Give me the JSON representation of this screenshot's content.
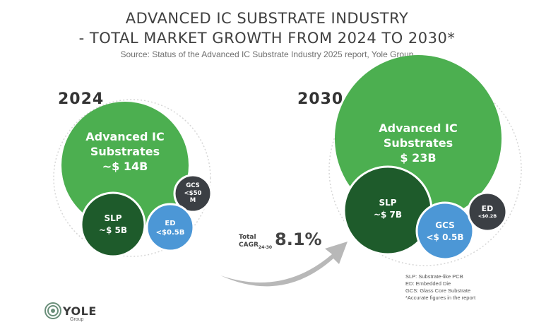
{
  "header": {
    "title_line1": "ADVANCED IC SUBSTRATE INDUSTRY",
    "title_line2": "- TOTAL MARKET GROWTH FROM 2024 TO 2030*",
    "source": "Source: Status of the Advanced IC Substrate Industry 2025 report, Yole Group"
  },
  "chart_data": {
    "type": "bubble",
    "title": "ADVANCED IC SUBSTRATE INDUSTRY - TOTAL MARKET GROWTH FROM 2024 TO 2030*",
    "years": [
      "2024",
      "2030"
    ],
    "segments": [
      "Advanced IC Substrates",
      "SLP",
      "GCS",
      "ED"
    ],
    "groups": [
      {
        "year": "2024",
        "bubbles": [
          {
            "segment": "Advanced IC Substrates",
            "label_lines": [
              "Advanced IC",
              "Substrates",
              "~$ 14B"
            ],
            "value": 14,
            "unit": "B USD",
            "color": "#4caf50"
          },
          {
            "segment": "SLP",
            "label_lines": [
              "SLP",
              "~$ 5B"
            ],
            "value": 5,
            "unit": "B USD",
            "color": "#1e5b2b"
          },
          {
            "segment": "GCS",
            "label_lines": [
              "GCS",
              "<$50",
              "M"
            ],
            "value": 0.05,
            "unit": "B USD",
            "color": "#3b3f44"
          },
          {
            "segment": "ED",
            "label_lines": [
              "ED",
              "<$0.5B"
            ],
            "value": 0.5,
            "unit": "B USD",
            "color": "#4c97d6"
          }
        ]
      },
      {
        "year": "2030",
        "bubbles": [
          {
            "segment": "Advanced IC Substrates",
            "label_lines": [
              "Advanced IC",
              "Substrates",
              "$ 23B"
            ],
            "value": 23,
            "unit": "B USD",
            "color": "#4caf50"
          },
          {
            "segment": "SLP",
            "label_lines": [
              "SLP",
              "~$ 7B"
            ],
            "value": 7,
            "unit": "B USD",
            "color": "#1e5b2b"
          },
          {
            "segment": "GCS",
            "label_lines": [
              "GCS",
              "<$ 0.5B"
            ],
            "value": 0.5,
            "unit": "B USD",
            "color": "#4c97d6"
          },
          {
            "segment": "ED",
            "label_lines": [
              "ED",
              "<$0.2B"
            ],
            "value": 0.2,
            "unit": "B USD",
            "color": "#3b3f44"
          }
        ]
      }
    ],
    "cagr": {
      "label_line1": "Total",
      "label_line2": "CAGR",
      "label_sub": "24-30",
      "value": "8.1%"
    },
    "legend": [
      "SLP: Substrate-like PCB",
      "ED: Embedded Die",
      "GCS: Glass Core Substrate",
      "*Accurate figures in the report"
    ]
  },
  "brand": {
    "name": "YOLE",
    "sub": "Group"
  },
  "colors": {
    "green_light": "#4caf50",
    "green_dark": "#1e5b2b",
    "blue": "#4c97d6",
    "charcoal": "#3b3f44",
    "outline": "#d6d6d6",
    "arrow": "#b8b8b8"
  }
}
